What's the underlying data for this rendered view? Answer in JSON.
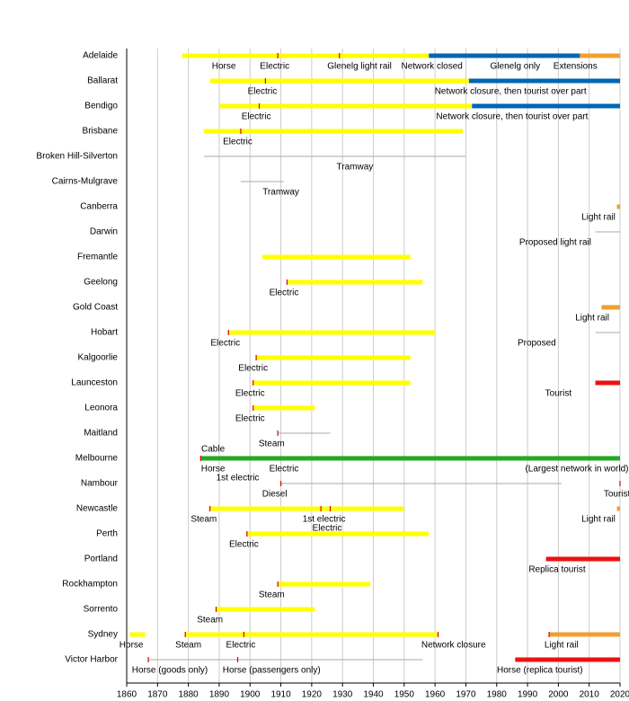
{
  "chart_data": {
    "type": "timeline",
    "xlim": [
      1860,
      2020
    ],
    "xticks": [
      1860,
      1870,
      1880,
      1890,
      1900,
      1910,
      1920,
      1930,
      1940,
      1950,
      1960,
      1970,
      1980,
      1990,
      2000,
      2010,
      2020
    ],
    "grid": true,
    "tick_color": "#dd0000",
    "rows": [
      {
        "name": "Adelaide",
        "segments": [
          {
            "start": 1878,
            "end": 1958,
            "color": "#ffff00"
          },
          {
            "start": 1958,
            "end": 2007,
            "color": "#0066b3"
          },
          {
            "start": 2007,
            "end": 2020,
            "color": "#f0a030"
          }
        ],
        "ticks": [
          1909,
          1929
        ],
        "labels": [
          {
            "year": 1891.5,
            "text": "Horse"
          },
          {
            "year": 1908,
            "text": "Electric"
          },
          {
            "year": 1935.5,
            "text": "Glenelg light rail"
          },
          {
            "year": 1959,
            "text": "Network closed"
          },
          {
            "year": 1986,
            "text": "Glenelg only"
          },
          {
            "year": 2005.5,
            "text": "Extensions"
          }
        ]
      },
      {
        "name": "Ballarat",
        "segments": [
          {
            "start": 1887,
            "end": 1971,
            "color": "#ffff00"
          },
          {
            "start": 1971,
            "end": 2020,
            "color": "#0066b3"
          }
        ],
        "ticks": [
          1905
        ],
        "labels": [
          {
            "year": 1904,
            "text": "Electric"
          },
          {
            "year": 1984.5,
            "text": "Network closure, then tourist over part"
          }
        ]
      },
      {
        "name": "Bendigo",
        "segments": [
          {
            "start": 1890,
            "end": 1972,
            "color": "#ffff00"
          },
          {
            "start": 1972,
            "end": 2020,
            "color": "#0066b3"
          }
        ],
        "ticks": [
          1903
        ],
        "labels": [
          {
            "year": 1902,
            "text": "Electric"
          },
          {
            "year": 1985,
            "text": "Network closure, then tourist over part"
          }
        ]
      },
      {
        "name": "Brisbane",
        "segments": [
          {
            "start": 1885,
            "end": 1969,
            "color": "#ffff00"
          }
        ],
        "ticks": [
          1897
        ],
        "labels": [
          {
            "year": 1896,
            "text": "Electric"
          }
        ]
      },
      {
        "name": "Broken Hill-Silverton",
        "segments": [
          {
            "start": 1885,
            "end": 1970,
            "color": "#aaaaaa",
            "style": "thin"
          }
        ],
        "ticks": [],
        "labels": [
          {
            "year": 1934,
            "text": "Tramway"
          }
        ]
      },
      {
        "name": "Cairns-Mulgrave",
        "segments": [
          {
            "start": 1897,
            "end": 1911,
            "color": "#aaaaaa",
            "style": "thin"
          }
        ],
        "ticks": [],
        "labels": [
          {
            "year": 1910,
            "text": "Tramway"
          }
        ]
      },
      {
        "name": "Canberra",
        "segments": [
          {
            "start": 2019,
            "end": 2020,
            "color": "#f0a030"
          }
        ],
        "ticks": [],
        "labels": [
          {
            "year": 2013,
            "text": "Light rail"
          }
        ]
      },
      {
        "name": "Darwin",
        "segments": [
          {
            "start": 2012,
            "end": 2020,
            "color": "#aaaaaa",
            "style": "thin"
          }
        ],
        "ticks": [],
        "labels": [
          {
            "year": 1999,
            "text": "Proposed light rail"
          }
        ]
      },
      {
        "name": "Fremantle",
        "segments": [
          {
            "start": 1904,
            "end": 1952,
            "color": "#ffff00"
          }
        ],
        "ticks": [],
        "labels": []
      },
      {
        "name": "Geelong",
        "segments": [
          {
            "start": 1912,
            "end": 1956,
            "color": "#ffff00"
          }
        ],
        "ticks": [
          1912
        ],
        "labels": [
          {
            "year": 1911,
            "text": "Electric"
          }
        ]
      },
      {
        "name": "Gold Coast",
        "segments": [
          {
            "start": 2014,
            "end": 2020,
            "color": "#f0a030"
          }
        ],
        "ticks": [],
        "labels": [
          {
            "year": 2011,
            "text": "Light rail"
          }
        ]
      },
      {
        "name": "Hobart",
        "segments": [
          {
            "start": 1893,
            "end": 1960,
            "color": "#ffff00"
          },
          {
            "start": 2012,
            "end": 2020,
            "color": "#aaaaaa",
            "style": "thin"
          }
        ],
        "ticks": [
          1893
        ],
        "labels": [
          {
            "year": 1892,
            "text": "Electric"
          },
          {
            "year": 1993,
            "text": "Proposed"
          }
        ]
      },
      {
        "name": "Kalgoorlie",
        "segments": [
          {
            "start": 1902,
            "end": 1952,
            "color": "#ffff00"
          }
        ],
        "ticks": [
          1902
        ],
        "labels": [
          {
            "year": 1901,
            "text": "Electric"
          }
        ]
      },
      {
        "name": "Launceston",
        "segments": [
          {
            "start": 1901,
            "end": 1952,
            "color": "#ffff00"
          },
          {
            "start": 2012,
            "end": 2020,
            "color": "#ee1111"
          }
        ],
        "ticks": [
          1901
        ],
        "labels": [
          {
            "year": 1900,
            "text": "Electric"
          },
          {
            "year": 2000,
            "text": "Tourist"
          }
        ]
      },
      {
        "name": "Leonora",
        "segments": [
          {
            "start": 1901,
            "end": 1921,
            "color": "#ffff00"
          }
        ],
        "ticks": [
          1901
        ],
        "labels": [
          {
            "year": 1900,
            "text": "Electric"
          }
        ]
      },
      {
        "name": "Maitland",
        "segments": [
          {
            "start": 1909,
            "end": 1926,
            "color": "#aaaaaa",
            "style": "thin"
          }
        ],
        "ticks": [
          1909
        ],
        "labels": [
          {
            "year": 1907,
            "text": "Steam"
          }
        ]
      },
      {
        "name": "Melbourne",
        "segments": [
          {
            "start": 1884,
            "end": 2020,
            "color": "#22aa22"
          }
        ],
        "ticks": [
          1884
        ],
        "labels": [
          {
            "year": 1888,
            "text": "Cable",
            "position": "above"
          },
          {
            "year": 1888,
            "text": "Horse"
          },
          {
            "year": 1911,
            "text": "Electric"
          },
          {
            "year": 1896,
            "text": "1st electric",
            "position": "lower"
          },
          {
            "year": 2006,
            "text": "(Largest network in world)"
          }
        ]
      },
      {
        "name": "Nambour",
        "segments": [
          {
            "start": 1910,
            "end": 2001,
            "color": "#aaaaaa",
            "style": "thin"
          }
        ],
        "ticks": [
          1910,
          2020
        ],
        "labels": [
          {
            "year": 1908,
            "text": "Diesel"
          },
          {
            "year": 2019,
            "text": "Tourist"
          }
        ]
      },
      {
        "name": "Newcastle",
        "segments": [
          {
            "start": 1887,
            "end": 1950,
            "color": "#ffff00"
          },
          {
            "start": 2019,
            "end": 2020,
            "color": "#f0a030"
          }
        ],
        "ticks": [
          1887,
          1923,
          1926
        ],
        "labels": [
          {
            "year": 1885,
            "text": "Steam"
          },
          {
            "year": 1924,
            "text": "1st electric"
          },
          {
            "year": 1925,
            "text": "Electric",
            "position": "lower"
          },
          {
            "year": 2013,
            "text": "Light rail"
          }
        ]
      },
      {
        "name": "Perth",
        "segments": [
          {
            "start": 1899,
            "end": 1958,
            "color": "#ffff00"
          }
        ],
        "ticks": [
          1899
        ],
        "labels": [
          {
            "year": 1898,
            "text": "Electric"
          }
        ]
      },
      {
        "name": "Portland",
        "segments": [
          {
            "start": 1996,
            "end": 2020,
            "color": "#ee1111"
          }
        ],
        "ticks": [],
        "labels": [
          {
            "year": 1999.6,
            "text": "Replica tourist"
          }
        ]
      },
      {
        "name": "Rockhampton",
        "segments": [
          {
            "start": 1909,
            "end": 1939,
            "color": "#ffff00"
          }
        ],
        "ticks": [
          1909
        ],
        "labels": [
          {
            "year": 1907,
            "text": "Steam"
          }
        ]
      },
      {
        "name": "Sorrento",
        "segments": [
          {
            "start": 1889,
            "end": 1921,
            "color": "#ffff00"
          }
        ],
        "ticks": [
          1889
        ],
        "labels": [
          {
            "year": 1887,
            "text": "Steam"
          }
        ]
      },
      {
        "name": "Sydney",
        "segments": [
          {
            "start": 1861,
            "end": 1866,
            "color": "#ffff00"
          },
          {
            "start": 1879,
            "end": 1961,
            "color": "#ffff00"
          },
          {
            "start": 1997,
            "end": 2020,
            "color": "#f0a030"
          }
        ],
        "ticks": [
          1879,
          1898,
          1961,
          1997
        ],
        "labels": [
          {
            "year": 1861.5,
            "text": "Horse"
          },
          {
            "year": 1880,
            "text": "Steam"
          },
          {
            "year": 1897,
            "text": "Electric"
          },
          {
            "year": 1966,
            "text": "Network closure"
          },
          {
            "year": 2001,
            "text": "Light rail"
          }
        ]
      },
      {
        "name": "Victor Harbor",
        "segments": [
          {
            "start": 1867,
            "end": 1956,
            "color": "#aaaaaa",
            "style": "thin"
          },
          {
            "start": 1986,
            "end": 2020,
            "color": "#ee1111"
          }
        ],
        "ticks": [
          1867,
          1896
        ],
        "labels": [
          {
            "year": 1874,
            "text": "Horse (goods only)"
          },
          {
            "year": 1907,
            "text": "Horse (passengers only)"
          },
          {
            "year": 1994,
            "text": "Horse (replica tourist)"
          }
        ]
      }
    ]
  }
}
